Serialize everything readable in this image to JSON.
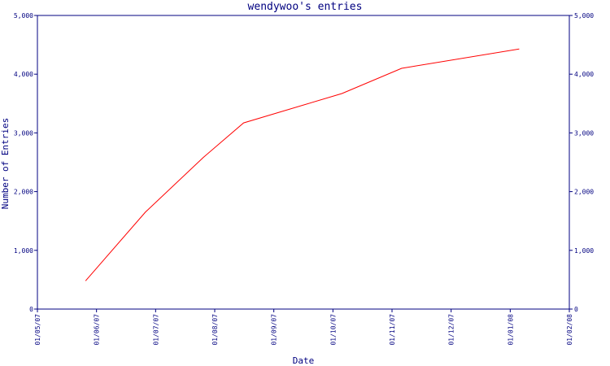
{
  "chart_data": {
    "type": "line",
    "title": "wendywoo's entries",
    "xlabel": "Date",
    "ylabel": "Number of Entries",
    "x_ticks": [
      "01/05/07",
      "01/06/07",
      "01/07/07",
      "01/08/07",
      "01/09/07",
      "01/10/07",
      "01/11/07",
      "01/12/07",
      "01/01/08",
      "01/02/08"
    ],
    "y_ticks": [
      "0",
      "1,000",
      "2,000",
      "3,000",
      "4,000",
      "5,000"
    ],
    "y_tick_values": [
      0,
      1000,
      2000,
      3000,
      4000,
      5000
    ],
    "ylim": [
      0,
      5000
    ],
    "xlim": [
      "2007-05-01",
      "2008-02-01"
    ],
    "grid": false,
    "series": [
      {
        "color": "#ff0000",
        "points": [
          {
            "x": "2007-05-26",
            "y": 480
          },
          {
            "x": "2007-06-26",
            "y": 1650
          },
          {
            "x": "2007-07-26",
            "y": 2580
          },
          {
            "x": "2007-08-16",
            "y": 3170
          },
          {
            "x": "2007-10-06",
            "y": 3670
          },
          {
            "x": "2007-11-06",
            "y": 4100
          },
          {
            "x": "2008-01-06",
            "y": 4430
          }
        ]
      }
    ]
  },
  "colors": {
    "axis": "#000080",
    "line": "#ff0000",
    "text": "#000080"
  }
}
